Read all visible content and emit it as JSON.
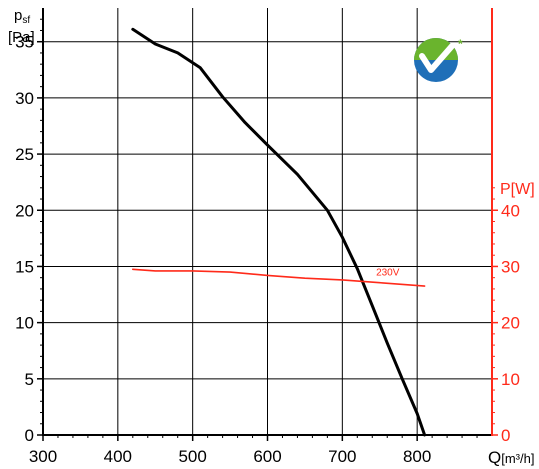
{
  "chart_data": {
    "type": "line",
    "x_axis": {
      "label_main": "Q",
      "label_unit": "[m³/h]",
      "range": [
        300,
        900
      ],
      "ticks": [
        300,
        400,
        500,
        600,
        700,
        800
      ],
      "grid": true
    },
    "y_axis_left": {
      "label_main": "p",
      "label_sub": "sf",
      "label_unit": "[Pa]",
      "range": [
        0,
        38
      ],
      "ticks": [
        0,
        5,
        10,
        15,
        20,
        25,
        30,
        35
      ],
      "grid": true
    },
    "y_axis_right": {
      "label": "P[W]",
      "range": [
        0,
        76
      ],
      "ticks": [
        0,
        10,
        20,
        30,
        40
      ],
      "color": "#ff2a1a"
    },
    "series": [
      {
        "axis": "left",
        "color": "#000000",
        "x": [
          420,
          450,
          480,
          510,
          540,
          570,
          600,
          640,
          680,
          700,
          720,
          740,
          760,
          780,
          800,
          810
        ],
        "y": [
          36.1,
          34.8,
          34.0,
          32.7,
          30.1,
          27.8,
          25.8,
          23.2,
          20.0,
          17.6,
          14.8,
          11.5,
          8.2,
          5.0,
          1.9,
          0.0
        ]
      },
      {
        "name": "230V",
        "axis": "right",
        "color": "#ff2a1a",
        "x": [
          420,
          450,
          500,
          550,
          600,
          650,
          700,
          750,
          810
        ],
        "y": [
          29.5,
          29.2,
          29.2,
          29.0,
          28.4,
          27.9,
          27.6,
          27.1,
          26.5
        ]
      }
    ],
    "legend": "none",
    "logo": "green-checkmark-badge-icon"
  }
}
